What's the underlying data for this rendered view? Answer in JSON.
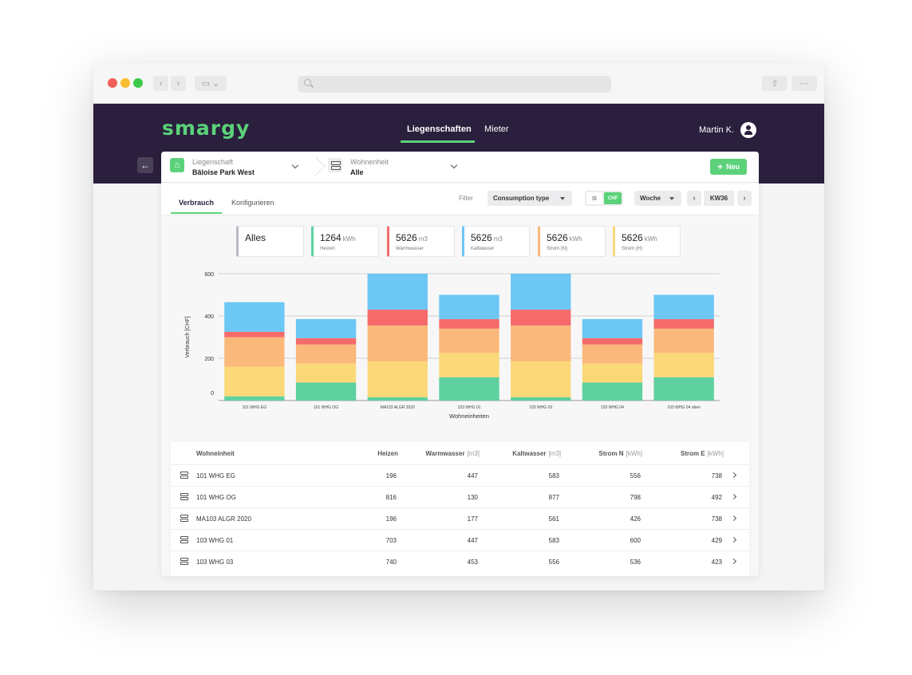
{
  "app": {
    "logo": "smargy"
  },
  "header": {
    "nav": [
      {
        "label": "Liegenschaften",
        "active": true
      },
      {
        "label": "Mieter",
        "active": false
      }
    ],
    "user": "Martin K."
  },
  "selector": {
    "property_label": "Liegenschaft",
    "property_value": "Bâloise Park West",
    "unit_label": "Wohnenheit",
    "unit_value": "Alle",
    "new_button": "Neu"
  },
  "toolbar": {
    "tabs": [
      {
        "label": "Verbrauch",
        "active": true
      },
      {
        "label": "Konfigurieren",
        "active": false
      }
    ],
    "filter_label": "Filter",
    "consumption_type": "Consumption type",
    "unit_toggle": {
      "chart_label": "",
      "chf_label": "CHF"
    },
    "period": "Woche",
    "week": "KW36"
  },
  "stats": [
    {
      "value": "Alles",
      "unit": "",
      "label": "",
      "color": "#b8bcc4"
    },
    {
      "value": "1264",
      "unit": "kWh",
      "label": "Heizen",
      "color": "#5ed1a0"
    },
    {
      "value": "5626",
      "unit": "m3",
      "label": "Warmwasser",
      "color": "#f56b6b"
    },
    {
      "value": "5626",
      "unit": "m3",
      "label": "Kaltwasser",
      "color": "#6cc7f5"
    },
    {
      "value": "5626",
      "unit": "kWh",
      "label": "Strom (N)",
      "color": "#fab97a"
    },
    {
      "value": "5626",
      "unit": "kWh",
      "label": "Strom (H)",
      "color": "#fbd878"
    }
  ],
  "chart_data": {
    "type": "bar",
    "stacked": true,
    "ylabel": "Verbrauch [CHF]",
    "xlabel": "Wohneinheiten",
    "ylim": [
      0,
      600
    ],
    "yticks": [
      0,
      200,
      400,
      600
    ],
    "categories": [
      "101 WHG EG",
      "101 WHG OG",
      "MA103 ALGR 2020",
      "103 WHG 01",
      "103 WHG 03",
      "103 WHG 04",
      "103 WHG 04 oben"
    ],
    "series": [
      {
        "name": "Heizen",
        "color": "#5ed1a0",
        "values": [
          20,
          85,
          15,
          110,
          15,
          85,
          110
        ]
      },
      {
        "name": "Strom (H)",
        "color": "#fbd878",
        "values": [
          140,
          90,
          170,
          115,
          170,
          90,
          115
        ]
      },
      {
        "name": "Strom (N)",
        "color": "#fab97a",
        "values": [
          140,
          90,
          170,
          115,
          170,
          90,
          115
        ]
      },
      {
        "name": "Warmwasser",
        "color": "#f56b6b",
        "values": [
          25,
          30,
          75,
          45,
          75,
          30,
          45
        ]
      },
      {
        "name": "Kaltwasser",
        "color": "#6cc7f5",
        "values": [
          140,
          90,
          170,
          115,
          170,
          90,
          115
        ]
      }
    ]
  },
  "table": {
    "headers": [
      {
        "label": "Wohneinheit",
        "unit": ""
      },
      {
        "label": "Heizen",
        "unit": ""
      },
      {
        "label": "Warmwasser",
        "unit": "[m3]"
      },
      {
        "label": "Kaltwasser",
        "unit": "[m3]"
      },
      {
        "label": "Strom N",
        "unit": "[kWh]"
      },
      {
        "label": "Strom E",
        "unit": "[kWh]"
      }
    ],
    "rows": [
      {
        "name": "101 WHG EG",
        "values": [
          "196",
          "447",
          "583",
          "556",
          "738"
        ]
      },
      {
        "name": "101 WHG OG",
        "values": [
          "816",
          "130",
          "877",
          "798",
          "492"
        ]
      },
      {
        "name": "MA103 ALGR 2020",
        "values": [
          "196",
          "177",
          "561",
          "426",
          "738"
        ]
      },
      {
        "name": "103 WHG 01",
        "values": [
          "703",
          "447",
          "583",
          "600",
          "429"
        ]
      },
      {
        "name": "103 WHG 03",
        "values": [
          "740",
          "453",
          "556",
          "536",
          "423"
        ]
      }
    ]
  },
  "colors": {
    "header_bg": "#2a1f3d",
    "accent": "#5bd27a"
  }
}
